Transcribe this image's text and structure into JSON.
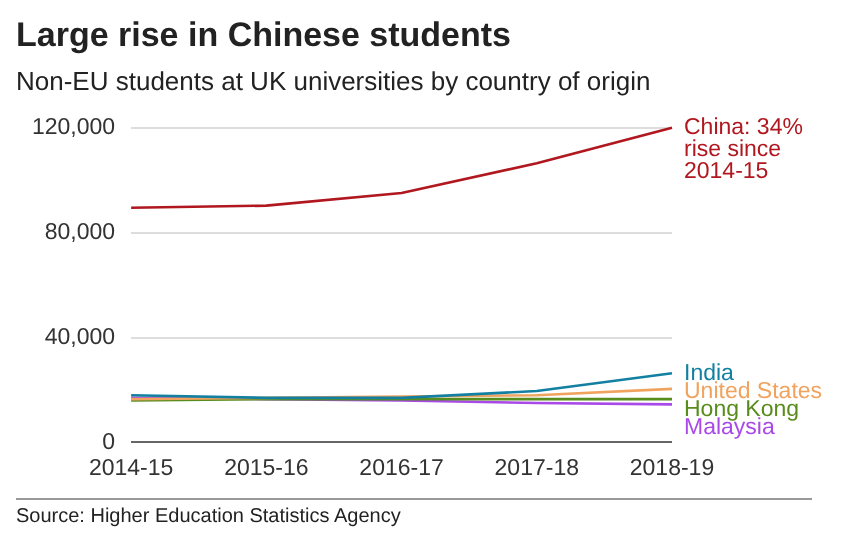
{
  "chart_data": {
    "type": "line",
    "title": "Large rise in Chinese students",
    "subtitle": "Non-EU students at UK universities by country of origin",
    "categories": [
      "2014-15",
      "2015-16",
      "2016-17",
      "2017-18",
      "2018-19"
    ],
    "series": [
      {
        "color": "#b0171f",
        "values": [
          89500,
          90300,
          95100,
          106500,
          120000
        ]
      },
      {
        "name": "India",
        "color": "#1380a1",
        "values": [
          18000,
          17000,
          17000,
          19600,
          26400
        ]
      },
      {
        "name": "United States",
        "color": "#f0a35e",
        "values": [
          16500,
          17000,
          17500,
          18000,
          20400
        ]
      },
      {
        "name": "Hong Kong",
        "color": "#588c1d",
        "values": [
          16000,
          16500,
          16500,
          16500,
          16500
        ]
      },
      {
        "name": "Malaysia",
        "color": "#a849e8",
        "values": [
          17000,
          16500,
          16000,
          15000,
          14500
        ]
      }
    ],
    "ylim": [
      0,
      120000
    ],
    "yticks": [
      {
        "value": 0,
        "label": "0"
      },
      {
        "value": 40000,
        "label": "40,000"
      },
      {
        "value": 80000,
        "label": "80,000"
      },
      {
        "value": 120000,
        "label": "120,000"
      }
    ],
    "grid": "y",
    "legend": false,
    "marker": "none",
    "line_style": "solid",
    "annotations": [
      {
        "text": "China: 34% rise since 2014-15",
        "x": "2018-19",
        "y": 120000
      },
      "Source: Higher Education Statistics Agency"
    ]
  }
}
